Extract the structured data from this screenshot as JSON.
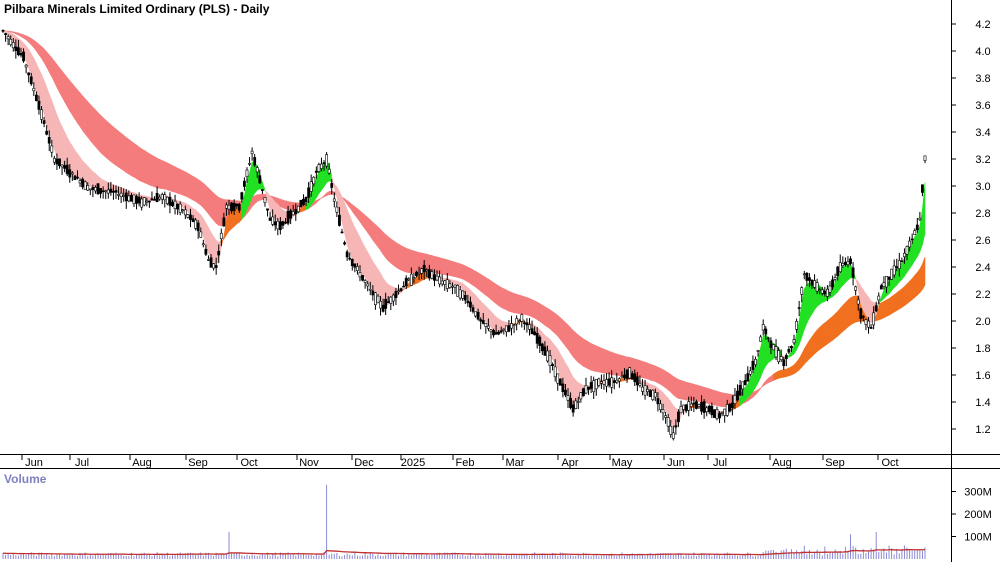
{
  "chart_title": "Pilbara Minerals Limited Ordinary (PLS) - Daily",
  "volume_title": "Volume",
  "colors": {
    "long_band": "#f47c7c",
    "short_band_down": "#f7b6b6",
    "band_up": "#22e022",
    "band_transition": "#f07020",
    "candle": "#000000",
    "volume_bar": "#8a8ad6",
    "volume_ma": "#c03030",
    "grid_border": "#000000"
  },
  "chart_data": [
    {
      "type": "candlestick",
      "title": "Pilbara Minerals Limited Ordinary (PLS) - Daily",
      "x_ticks": [
        "Jun",
        "Jul",
        "Aug",
        "Sep",
        "Oct",
        "Nov",
        "Dec",
        "2025",
        "Feb",
        "Mar",
        "Apr",
        "May",
        "Jun",
        "Jul",
        "Aug",
        "Sep",
        "Oct"
      ],
      "y_ticks": [
        "4.2",
        "4.0",
        "3.8",
        "3.6",
        "3.4",
        "3.2",
        "3.0",
        "2.8",
        "2.6",
        "2.4",
        "2.2",
        "2.0",
        "1.8",
        "1.6",
        "1.4",
        "1.2"
      ],
      "ylim": [
        1.05,
        4.3
      ],
      "close_series": [
        [
          "May",
          4.15
        ],
        [
          "Jun",
          3.5
        ],
        [
          "Jun",
          3.1
        ],
        [
          "Jul",
          2.95
        ],
        [
          "Jul",
          2.9
        ],
        [
          "Aug",
          2.9
        ],
        [
          "Aug",
          2.85
        ],
        [
          "Sep",
          2.7
        ],
        [
          "Sep",
          2.4
        ],
        [
          "Oct",
          2.9
        ],
        [
          "Oct",
          3.25
        ],
        [
          "Oct",
          2.7
        ],
        [
          "Nov",
          2.85
        ],
        [
          "Nov",
          3.2
        ],
        [
          "Nov",
          2.75
        ],
        [
          "Dec",
          2.4
        ],
        [
          "Dec",
          2.1
        ],
        [
          "2025",
          2.25
        ],
        [
          "2025",
          2.35
        ],
        [
          "Feb",
          2.3
        ],
        [
          "Feb",
          2.05
        ],
        [
          "Mar",
          1.9
        ],
        [
          "Mar",
          2.0
        ],
        [
          "Apr",
          1.6
        ],
        [
          "Apr",
          1.45
        ],
        [
          "May",
          1.5
        ],
        [
          "May",
          1.55
        ],
        [
          "Jun",
          1.45
        ],
        [
          "Jun",
          1.2
        ],
        [
          "Jun",
          1.35
        ],
        [
          "Jul",
          1.35
        ],
        [
          "Jul",
          1.55
        ],
        [
          "Jul",
          1.9
        ],
        [
          "Aug",
          1.7
        ],
        [
          "Aug",
          2.3
        ],
        [
          "Aug",
          2.2
        ],
        [
          "Sep",
          2.4
        ],
        [
          "Sep",
          2.05
        ],
        [
          "Sep",
          2.3
        ],
        [
          "Oct",
          2.45
        ],
        [
          "Oct",
          2.6
        ],
        [
          "Oct",
          2.85
        ],
        [
          "Oct",
          3.2
        ]
      ],
      "last_price": 3.2,
      "indicator": "GMMA-style moving average ribbons (short-term and long-term)"
    },
    {
      "type": "bar",
      "title": "Volume",
      "y_ticks": [
        "300M",
        "200M",
        "100M"
      ],
      "notable_spike": "~330M in early Nov",
      "typical_volume": "~20-60M"
    }
  ]
}
